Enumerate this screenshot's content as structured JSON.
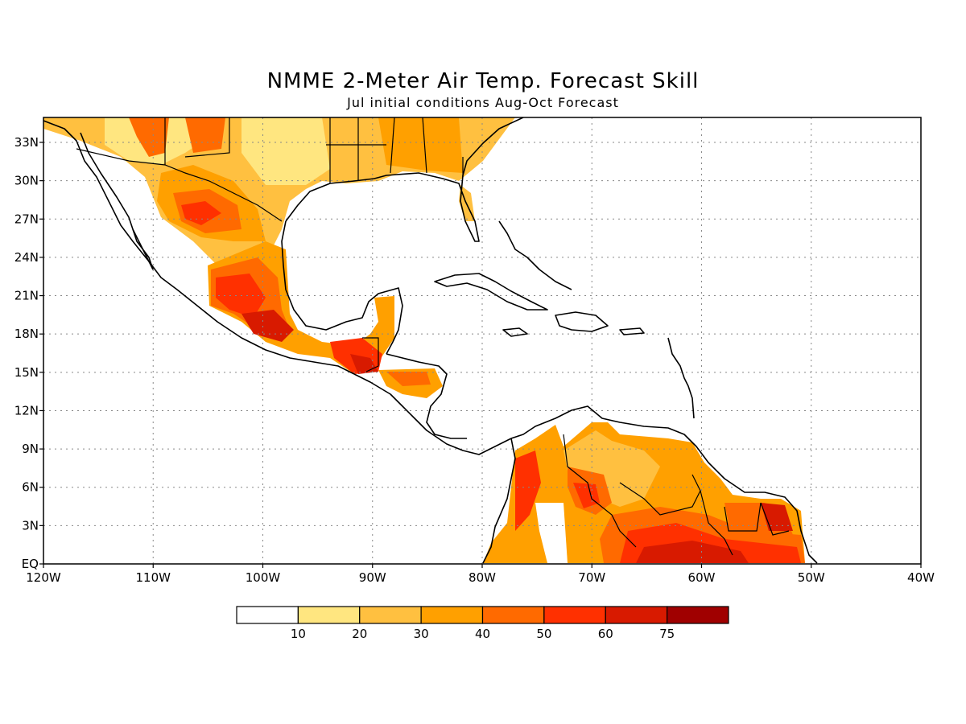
{
  "title": "NMME 2-Meter Air Temp. Forecast Skill",
  "subtitle": "Jul initial conditions  Aug-Oct Forecast",
  "axes": {
    "lon_ticks": [
      "120W",
      "110W",
      "100W",
      "90W",
      "80W",
      "70W",
      "60W",
      "50W",
      "40W"
    ],
    "lat_ticks": [
      "33N",
      "30N",
      "27N",
      "24N",
      "21N",
      "18N",
      "15N",
      "12N",
      "9N",
      "6N",
      "3N",
      "EQ"
    ],
    "grid": "dotted"
  },
  "colorbar": {
    "labels": [
      "10",
      "20",
      "30",
      "40",
      "50",
      "60",
      "75"
    ],
    "colors": [
      "#ffffff",
      "#ffe680",
      "#ffc040",
      "#ffa000",
      "#ff6a00",
      "#ff3000",
      "#d81a00",
      "#a00000"
    ]
  }
}
